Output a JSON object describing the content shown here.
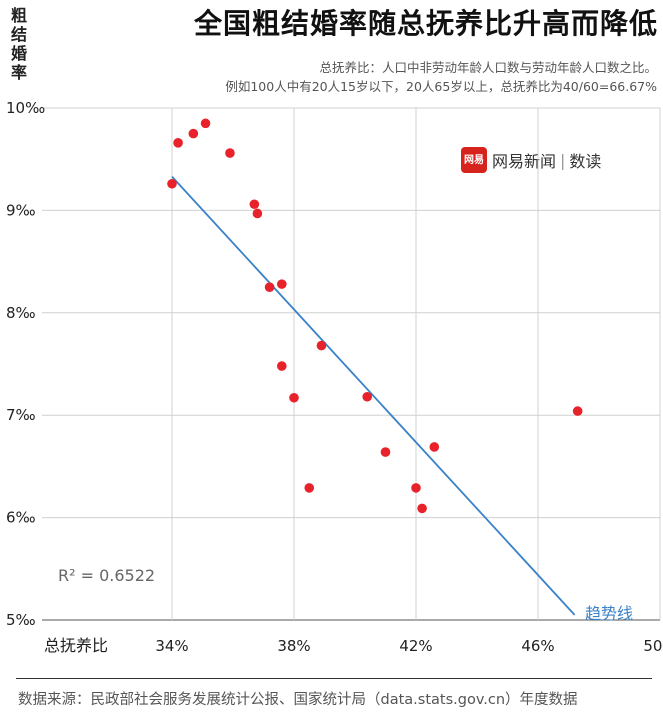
{
  "header": {
    "title": "全国粗结婚率随总抚养比升高而降低",
    "subtitle_line1": "总抚养比：人口中非劳动年龄人口数与劳动年龄人口数之比。",
    "subtitle_line2": "例如100人中有20人15岁以下，20人65岁以上，总抚养比为40/60=66.67%"
  },
  "brand": {
    "logo_text": "网易",
    "name": "网易新闻",
    "separator": "|",
    "section": "数读"
  },
  "annotations": {
    "r2": "R² = 0.6522",
    "trend_label": "趋势线"
  },
  "footer": {
    "source": "数据来源：民政部社会服务发展统计公报、国家统计局（data.stats.gov.cn）年度数据"
  },
  "colors": {
    "point": "#e8222a",
    "trend": "#3b82c8",
    "grid": "#d0d0d0"
  },
  "chart_data": {
    "type": "scatter",
    "title": "全国粗结婚率随总抚养比升高而降低",
    "xlabel": "总抚养比",
    "ylabel": "粗结婚率",
    "xlim": [
      34,
      50
    ],
    "ylim": [
      5,
      10
    ],
    "x_ticks": [
      34,
      38,
      42,
      46,
      50
    ],
    "x_tick_labels": [
      "34%",
      "38%",
      "42%",
      "46%",
      "50%"
    ],
    "y_ticks": [
      5,
      6,
      7,
      8,
      9,
      10
    ],
    "y_tick_labels": [
      "5‰",
      "6‰",
      "7‰",
      "8‰",
      "9‰",
      "10‰"
    ],
    "grid": true,
    "points": [
      {
        "x": 34.0,
        "y": 9.26
      },
      {
        "x": 34.2,
        "y": 9.66
      },
      {
        "x": 34.7,
        "y": 9.75
      },
      {
        "x": 35.1,
        "y": 9.85
      },
      {
        "x": 35.9,
        "y": 9.56
      },
      {
        "x": 36.7,
        "y": 9.06
      },
      {
        "x": 36.8,
        "y": 8.97
      },
      {
        "x": 37.2,
        "y": 8.25
      },
      {
        "x": 37.6,
        "y": 8.28
      },
      {
        "x": 37.6,
        "y": 7.48
      },
      {
        "x": 38.0,
        "y": 7.17
      },
      {
        "x": 38.5,
        "y": 6.29
      },
      {
        "x": 38.9,
        "y": 7.68
      },
      {
        "x": 40.4,
        "y": 7.18
      },
      {
        "x": 41.0,
        "y": 6.64
      },
      {
        "x": 42.0,
        "y": 6.29
      },
      {
        "x": 42.2,
        "y": 6.09
      },
      {
        "x": 42.6,
        "y": 6.69
      },
      {
        "x": 47.3,
        "y": 7.04
      }
    ],
    "trendline": {
      "x": [
        34.0,
        47.2
      ],
      "y": [
        9.33,
        5.05
      ]
    },
    "r_squared": 0.6522
  }
}
